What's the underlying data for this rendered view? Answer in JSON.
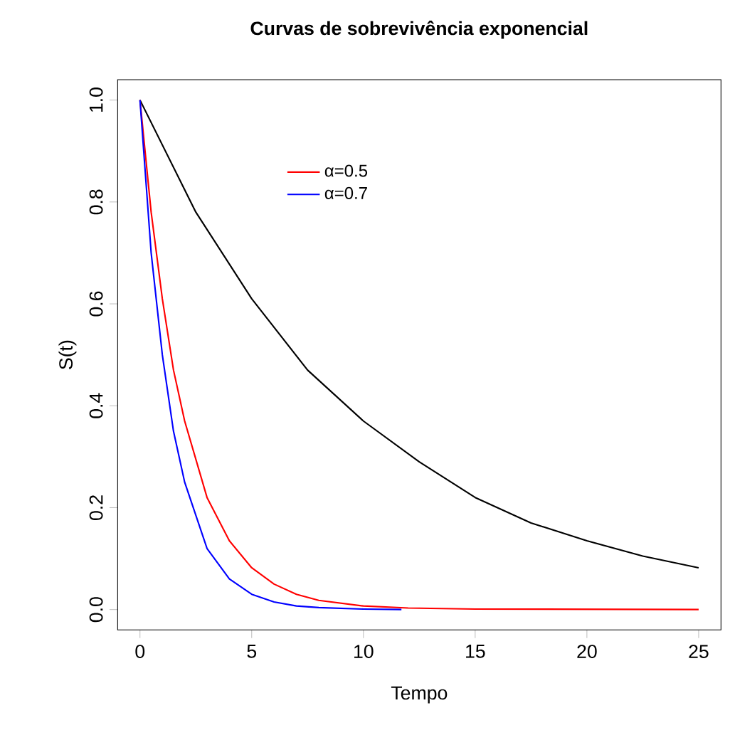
{
  "chart_data": {
    "type": "line",
    "title": "Curvas de sobrevivência exponencial",
    "xlabel": "Tempo",
    "ylabel": "S(t)",
    "xlim": [
      -1,
      26
    ],
    "ylim": [
      -0.04,
      1.04
    ],
    "xticks": [
      0,
      5,
      10,
      15,
      20,
      25
    ],
    "yticks": [
      {
        "value": 0,
        "label": "0.0"
      },
      {
        "value": 0.2,
        "label": "0.2"
      },
      {
        "value": 0.4,
        "label": "0.4"
      },
      {
        "value": 0.6,
        "label": "0.6"
      },
      {
        "value": 0.8,
        "label": "0.8"
      },
      {
        "value": 1,
        "label": "1.0"
      }
    ],
    "grid": false,
    "legend": "top",
    "line_style": "solid",
    "series": [
      {
        "color": "#000000",
        "x": [
          0,
          2.5,
          5,
          7.5,
          10,
          12.5,
          15,
          17.5,
          20,
          22.5,
          25
        ],
        "values": [
          1,
          0.78,
          0.61,
          0.47,
          0.37,
          0.29,
          0.22,
          0.17,
          0.135,
          0.105,
          0.082
        ]
      },
      {
        "name": "α=0.5",
        "color": "#ff0000",
        "x": [
          0,
          0.5,
          1,
          1.5,
          2,
          3,
          4,
          5,
          6,
          7,
          8,
          10,
          12,
          15,
          25
        ],
        "values": [
          1,
          0.78,
          0.61,
          0.47,
          0.37,
          0.22,
          0.135,
          0.082,
          0.05,
          0.03,
          0.018,
          0.007,
          0.003,
          0.001,
          0
        ]
      },
      {
        "name": "α=0.7",
        "color": "#0000ff",
        "x": [
          0,
          0.5,
          1,
          1.5,
          2,
          3,
          4,
          5,
          6,
          7,
          8,
          10,
          11.7
        ],
        "values": [
          1,
          0.7,
          0.5,
          0.35,
          0.25,
          0.12,
          0.06,
          0.03,
          0.015,
          0.007,
          0.004,
          0.001,
          0
        ]
      }
    ]
  }
}
